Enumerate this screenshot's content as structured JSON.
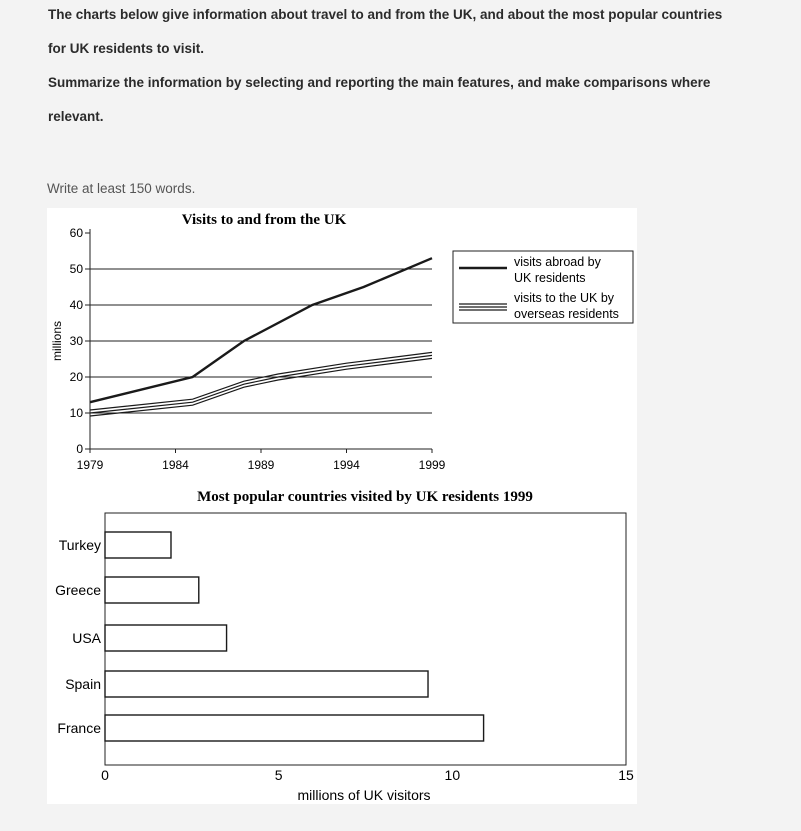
{
  "prompt": {
    "line1": "The charts below give information about travel to and from the UK, and about the most popular countries",
    "line2": "for UK residents to visit.",
    "line3": "Summarize the information by selecting and reporting the main features, and make comparisons where",
    "line4": "relevant."
  },
  "hint": "Write at least 150 words.",
  "chart_data": [
    {
      "type": "line",
      "title": "Visits to and from the UK",
      "xlabel": "",
      "ylabel": "millions",
      "x_ticks": [
        1979,
        1984,
        1989,
        1994,
        1999
      ],
      "y_ticks": [
        0,
        10,
        20,
        30,
        40,
        50,
        60
      ],
      "xlim": [
        1979,
        1999
      ],
      "ylim": [
        0,
        60
      ],
      "grid": "horizontal",
      "legend": "top-right",
      "series": [
        {
          "name": "visits abroad by UK residents",
          "x": [
            1979,
            1985,
            1988,
            1992,
            1995,
            1999
          ],
          "y": [
            13,
            20,
            30,
            40,
            45,
            53
          ]
        },
        {
          "name": "visits to the UK by overseas residents",
          "x": [
            1979,
            1985,
            1988,
            1990,
            1994,
            1999
          ],
          "y": [
            10,
            13,
            18,
            20,
            23,
            26
          ]
        }
      ]
    },
    {
      "type": "bar",
      "orientation": "horizontal",
      "title": "Most popular countries visited by UK residents 1999",
      "xlabel": "millions of UK visitors",
      "ylabel": "",
      "categories": [
        "Turkey",
        "Greece",
        "USA",
        "Spain",
        "France"
      ],
      "values": [
        1.9,
        2.7,
        3.5,
        9.3,
        10.9
      ],
      "x_ticks": [
        0,
        5,
        10,
        15
      ],
      "xlim": [
        0,
        15
      ]
    }
  ]
}
